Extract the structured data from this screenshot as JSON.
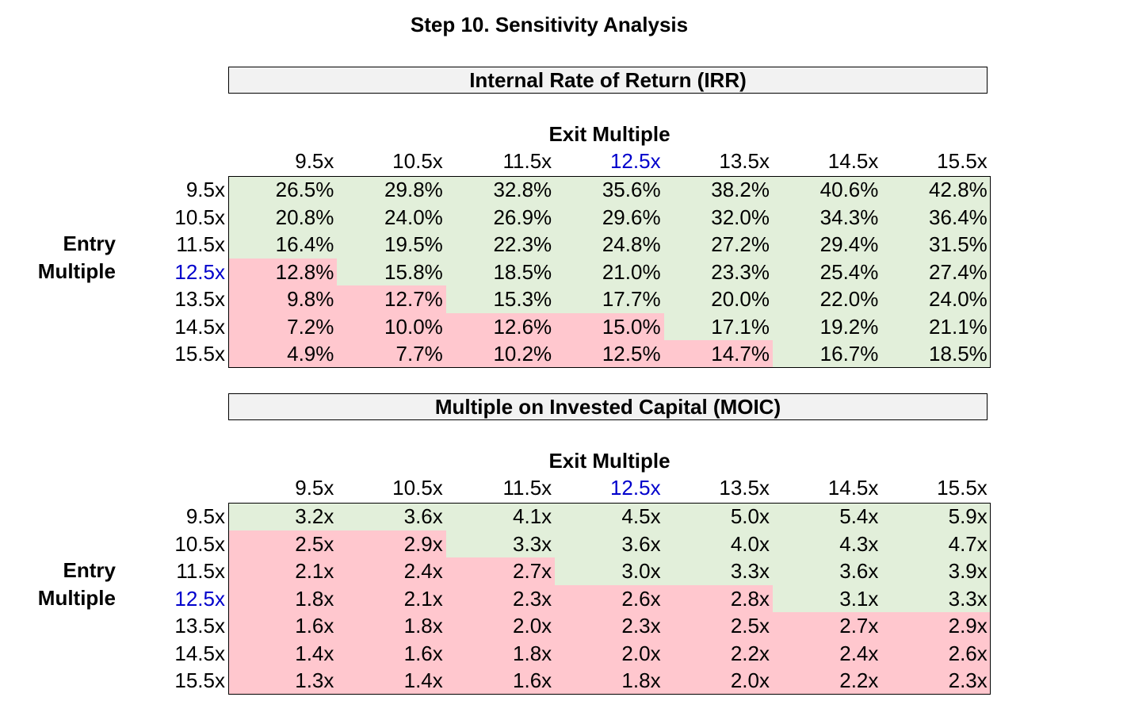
{
  "page_title": "Step 10. Sensitivity Analysis",
  "colors": {
    "good": "#e2efda",
    "bad": "#ffc7ce",
    "highlight": "#0000cc",
    "title_bg": "#f2f2f2"
  },
  "tables": [
    {
      "title": "Internal Rate of Return (IRR)",
      "exit_label": "Exit Multiple",
      "entry_label_line1": "Entry",
      "entry_label_line2": "Multiple",
      "highlight_col": 3,
      "highlight_row": 3,
      "col_headers": [
        "9.5x",
        "10.5x",
        "11.5x",
        "12.5x",
        "13.5x",
        "14.5x",
        "15.5x"
      ],
      "row_headers": [
        "9.5x",
        "10.5x",
        "11.5x",
        "12.5x",
        "13.5x",
        "14.5x",
        "15.5x"
      ],
      "rows": [
        [
          "26.5%",
          "29.8%",
          "32.8%",
          "35.6%",
          "38.2%",
          "40.6%",
          "42.8%"
        ],
        [
          "20.8%",
          "24.0%",
          "26.9%",
          "29.6%",
          "32.0%",
          "34.3%",
          "36.4%"
        ],
        [
          "16.4%",
          "19.5%",
          "22.3%",
          "24.8%",
          "27.2%",
          "29.4%",
          "31.5%"
        ],
        [
          "12.8%",
          "15.8%",
          "18.5%",
          "21.0%",
          "23.3%",
          "25.4%",
          "27.4%"
        ],
        [
          "9.8%",
          "12.7%",
          "15.3%",
          "17.7%",
          "20.0%",
          "22.0%",
          "24.0%"
        ],
        [
          "7.2%",
          "10.0%",
          "12.6%",
          "15.0%",
          "17.1%",
          "19.2%",
          "21.1%"
        ],
        [
          "4.9%",
          "7.7%",
          "10.2%",
          "12.5%",
          "14.7%",
          "16.7%",
          "18.5%"
        ]
      ],
      "status": [
        [
          "good",
          "good",
          "good",
          "good",
          "good",
          "good",
          "good"
        ],
        [
          "good",
          "good",
          "good",
          "good",
          "good",
          "good",
          "good"
        ],
        [
          "good",
          "good",
          "good",
          "good",
          "good",
          "good",
          "good"
        ],
        [
          "bad",
          "good",
          "good",
          "good",
          "good",
          "good",
          "good"
        ],
        [
          "bad",
          "bad",
          "good",
          "good",
          "good",
          "good",
          "good"
        ],
        [
          "bad",
          "bad",
          "bad",
          "bad",
          "good",
          "good",
          "good"
        ],
        [
          "bad",
          "bad",
          "bad",
          "bad",
          "bad",
          "good",
          "good"
        ]
      ]
    },
    {
      "title": "Multiple on Invested Capital (MOIC)",
      "exit_label": "Exit Multiple",
      "entry_label_line1": "Entry",
      "entry_label_line2": "Multiple",
      "highlight_col": 3,
      "highlight_row": 3,
      "col_headers": [
        "9.5x",
        "10.5x",
        "11.5x",
        "12.5x",
        "13.5x",
        "14.5x",
        "15.5x"
      ],
      "row_headers": [
        "9.5x",
        "10.5x",
        "11.5x",
        "12.5x",
        "13.5x",
        "14.5x",
        "15.5x"
      ],
      "rows": [
        [
          "3.2x",
          "3.6x",
          "4.1x",
          "4.5x",
          "5.0x",
          "5.4x",
          "5.9x"
        ],
        [
          "2.5x",
          "2.9x",
          "3.3x",
          "3.6x",
          "4.0x",
          "4.3x",
          "4.7x"
        ],
        [
          "2.1x",
          "2.4x",
          "2.7x",
          "3.0x",
          "3.3x",
          "3.6x",
          "3.9x"
        ],
        [
          "1.8x",
          "2.1x",
          "2.3x",
          "2.6x",
          "2.8x",
          "3.1x",
          "3.3x"
        ],
        [
          "1.6x",
          "1.8x",
          "2.0x",
          "2.3x",
          "2.5x",
          "2.7x",
          "2.9x"
        ],
        [
          "1.4x",
          "1.6x",
          "1.8x",
          "2.0x",
          "2.2x",
          "2.4x",
          "2.6x"
        ],
        [
          "1.3x",
          "1.4x",
          "1.6x",
          "1.8x",
          "2.0x",
          "2.2x",
          "2.3x"
        ]
      ],
      "status": [
        [
          "good",
          "good",
          "good",
          "good",
          "good",
          "good",
          "good"
        ],
        [
          "bad",
          "bad",
          "good",
          "good",
          "good",
          "good",
          "good"
        ],
        [
          "bad",
          "bad",
          "bad",
          "good",
          "good",
          "good",
          "good"
        ],
        [
          "bad",
          "bad",
          "bad",
          "bad",
          "bad",
          "good",
          "good"
        ],
        [
          "bad",
          "bad",
          "bad",
          "bad",
          "bad",
          "bad",
          "bad"
        ],
        [
          "bad",
          "bad",
          "bad",
          "bad",
          "bad",
          "bad",
          "bad"
        ],
        [
          "bad",
          "bad",
          "bad",
          "bad",
          "bad",
          "bad",
          "bad"
        ]
      ]
    }
  ]
}
